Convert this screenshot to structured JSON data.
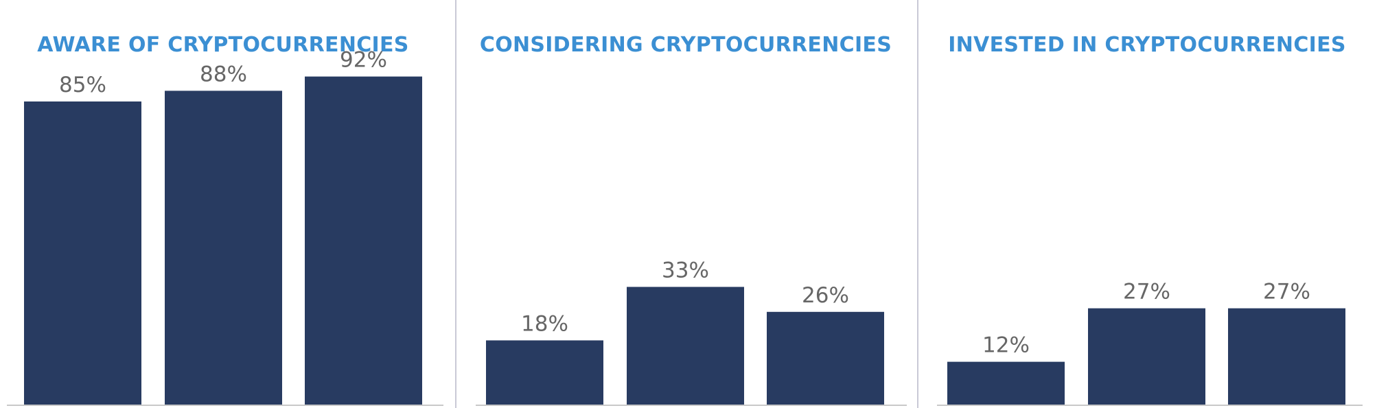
{
  "chart_data": [
    {
      "type": "bar",
      "title": "AWARE OF CRYPTOCURRENCIES",
      "categories": [
        "",
        "",
        ""
      ],
      "values": [
        85,
        88,
        92
      ],
      "value_labels": [
        "85%",
        "88%",
        "92%"
      ],
      "ylim": [
        0,
        100
      ],
      "grid": false
    },
    {
      "type": "bar",
      "title": "CONSIDERING CRYPTOCURRENCIES",
      "categories": [
        "",
        "",
        ""
      ],
      "values": [
        18,
        33,
        26
      ],
      "value_labels": [
        "18%",
        "33%",
        "26%"
      ],
      "ylim": [
        0,
        100
      ],
      "grid": false
    },
    {
      "type": "bar",
      "title": "INVESTED IN CRYPTOCURRENCIES",
      "categories": [
        "",
        "",
        ""
      ],
      "values": [
        12,
        27,
        27
      ],
      "value_labels": [
        "12%",
        "27%",
        "27%"
      ],
      "ylim": [
        0,
        100
      ],
      "grid": false
    }
  ],
  "colors": {
    "bar": "#283b61",
    "title": "#3b8fd3",
    "label": "#666666"
  }
}
